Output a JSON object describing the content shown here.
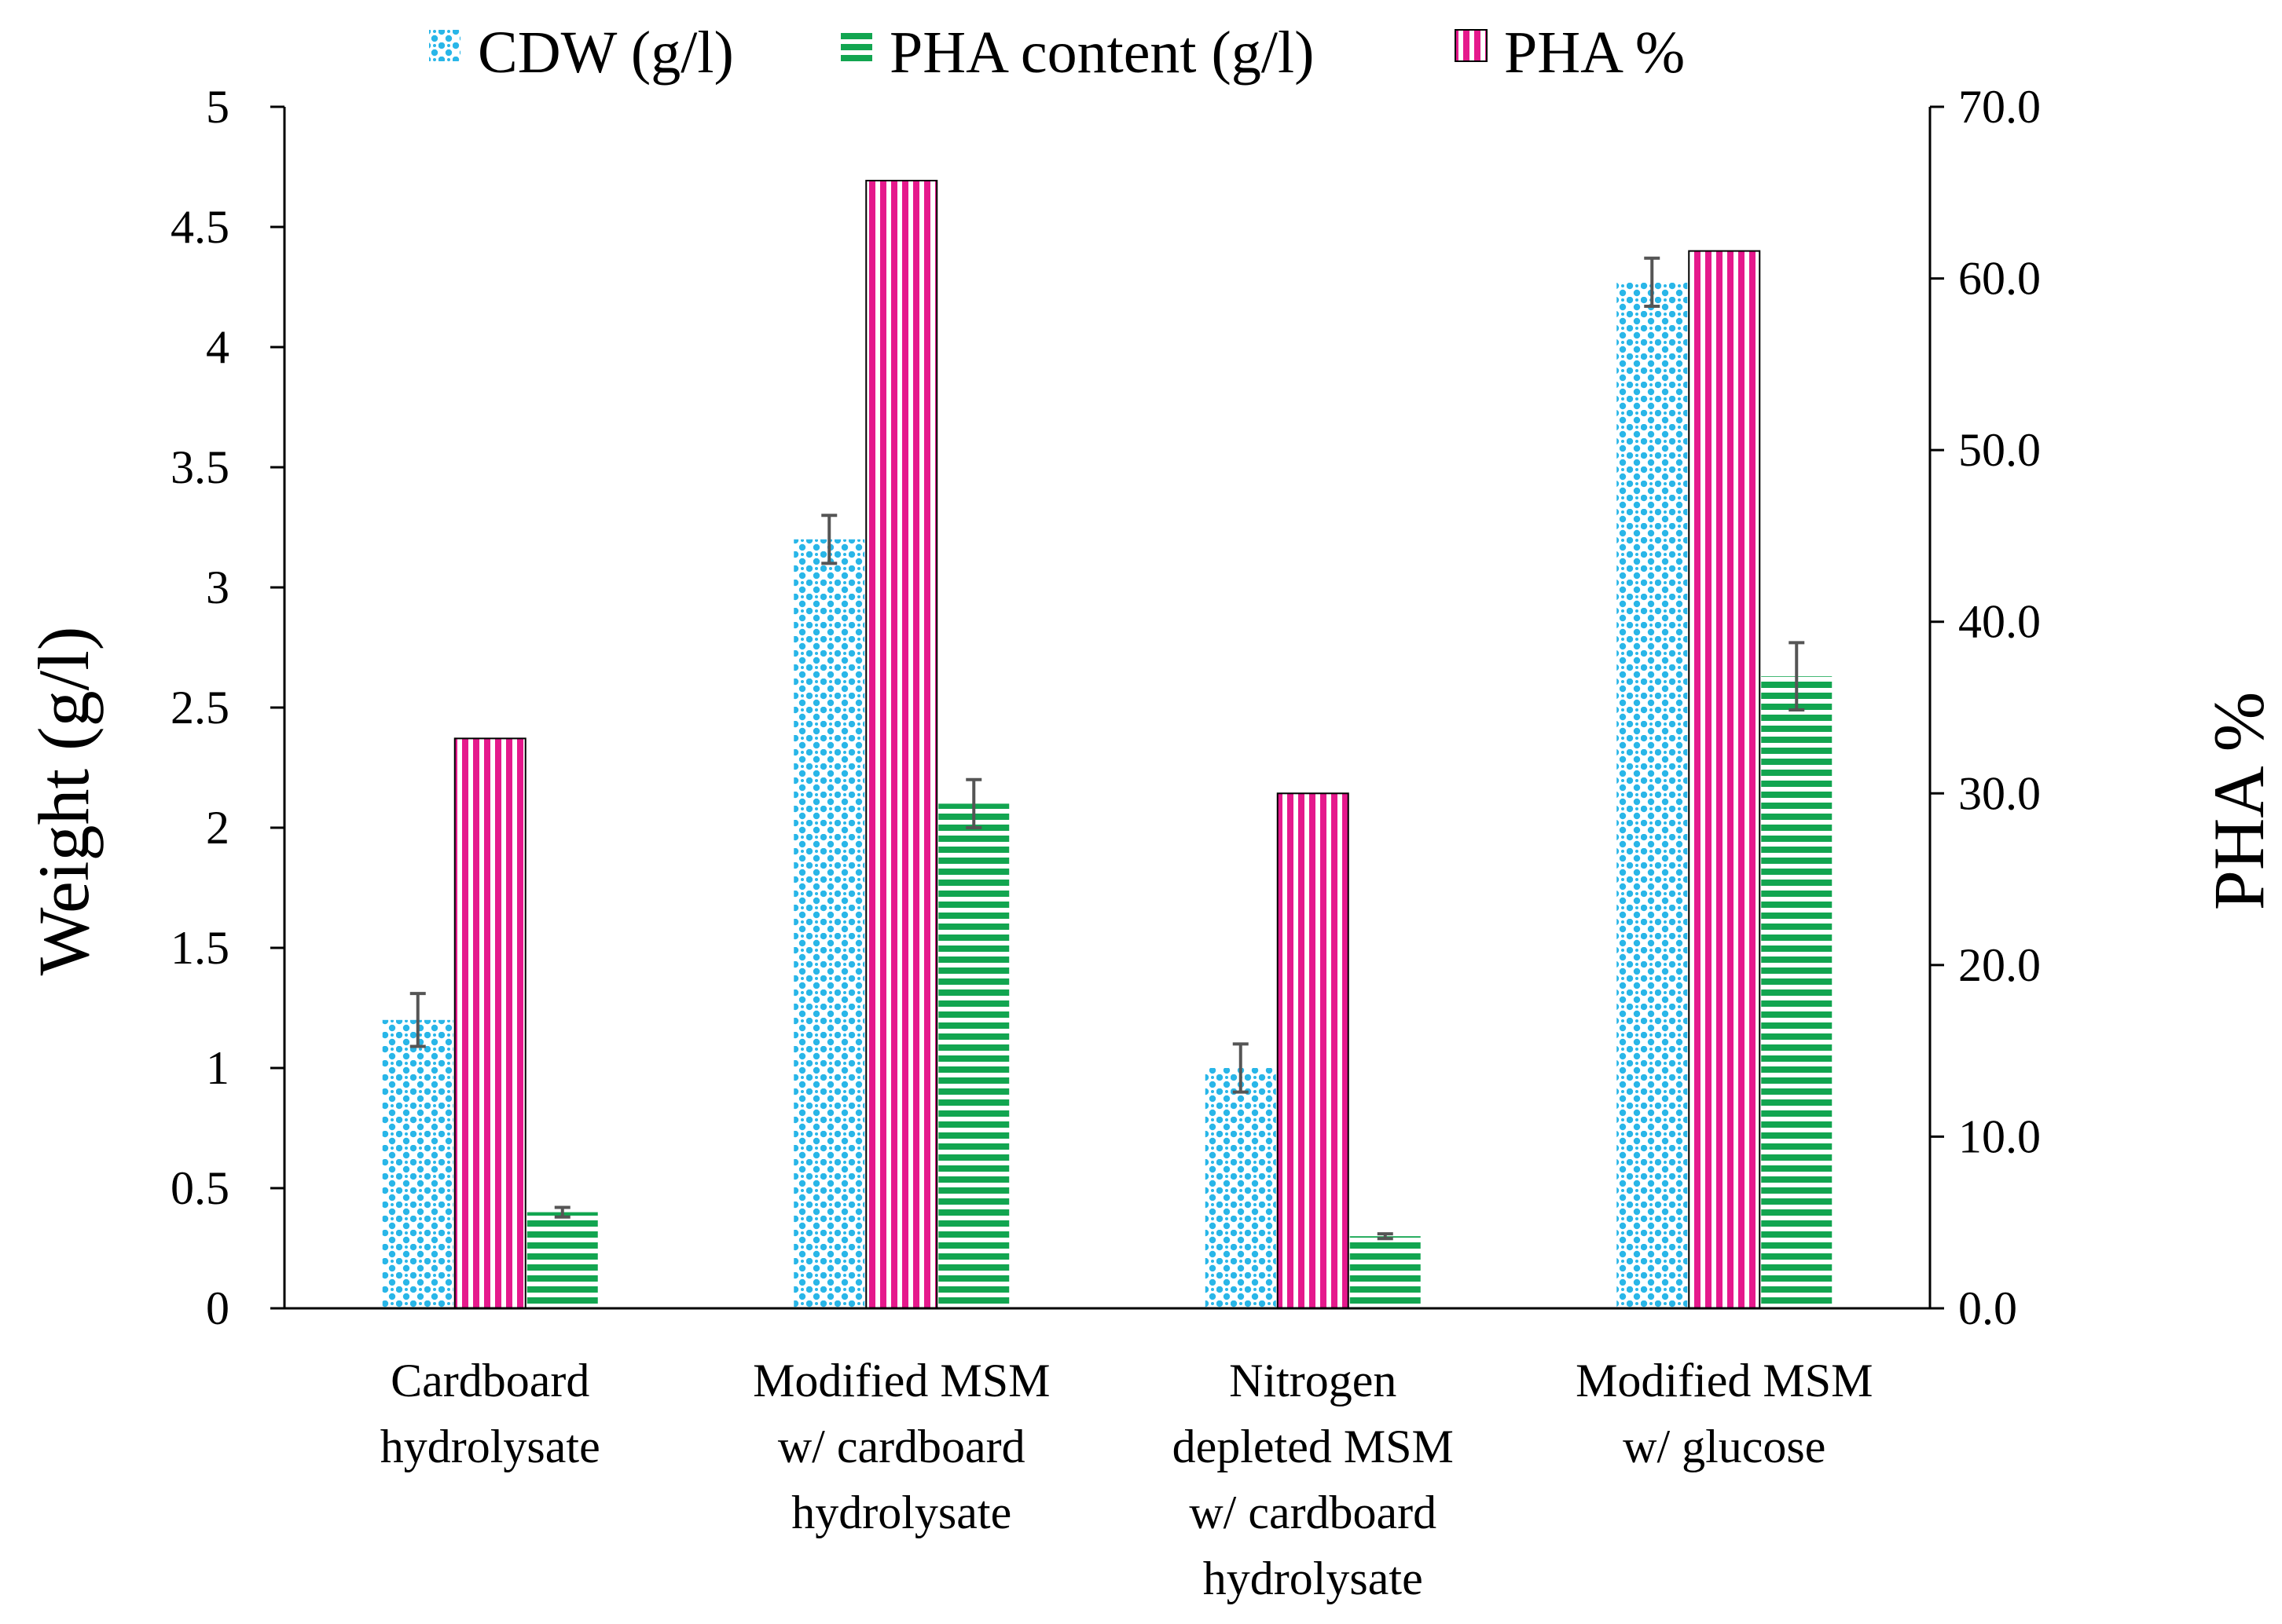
{
  "chart_data": {
    "type": "bar",
    "categories": [
      [
        "Cardboard",
        "hydrolysate"
      ],
      [
        "Modified MSM",
        "w/ cardboard",
        "hydrolysate"
      ],
      [
        "Nitrogen",
        "depleted MSM",
        "w/ cardboard",
        "hydrolysate"
      ],
      [
        "Modified MSM",
        "w/ glucose"
      ]
    ],
    "series": [
      {
        "name": "CDW (g/l)",
        "axis": "left",
        "pattern": "dots",
        "color": "#29B6E8",
        "values": [
          1.2,
          3.2,
          1.0,
          4.27
        ],
        "errors": [
          0.11,
          0.1,
          0.1,
          0.1
        ]
      },
      {
        "name": "PHA %",
        "axis": "right",
        "pattern": "vertical-stripes",
        "color": "#E5198C",
        "values": [
          33.2,
          65.7,
          30.0,
          61.6
        ],
        "errors": []
      },
      {
        "name": "PHA content (g/l)",
        "axis": "left",
        "pattern": "horizontal-stripes",
        "color": "#12A550",
        "values": [
          0.4,
          2.1,
          0.3,
          2.63
        ],
        "errors": [
          0.02,
          0.1,
          0.01,
          0.14
        ]
      }
    ],
    "legend_order": [
      0,
      2,
      1
    ],
    "legend_position": "top",
    "y_left": {
      "label": "Weight (g/l)",
      "range": [
        0,
        5
      ],
      "ticks": [
        "0",
        "0.5",
        "1",
        "1.5",
        "2",
        "2.5",
        "3",
        "3.5",
        "4",
        "4.5",
        "5"
      ]
    },
    "y_right": {
      "label": "PHA %",
      "range": [
        0,
        70
      ],
      "ticks": [
        "0.0",
        "10.0",
        "20.0",
        "30.0",
        "40.0",
        "50.0",
        "60.0",
        "70.0"
      ]
    },
    "grid": false,
    "title": ""
  }
}
